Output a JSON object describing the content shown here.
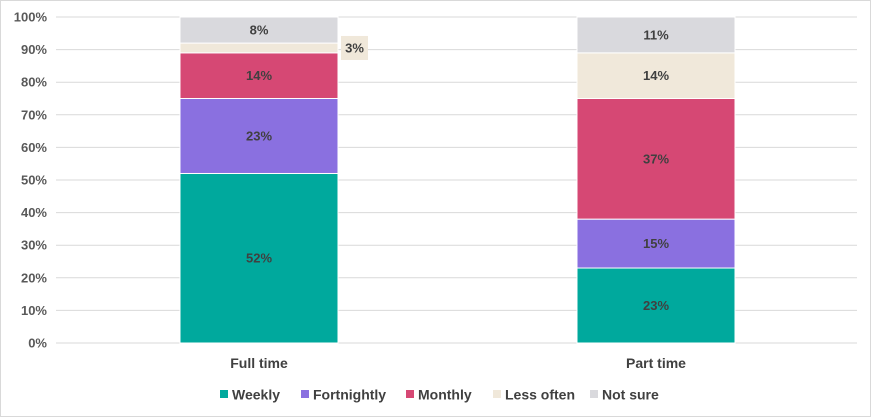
{
  "chart_data": {
    "type": "bar",
    "stacked": true,
    "categories": [
      "Full time",
      "Part time"
    ],
    "series": [
      {
        "name": "Weekly",
        "values": [
          52,
          23
        ],
        "color": "#00a99d"
      },
      {
        "name": "Fortnightly",
        "values": [
          23,
          15
        ],
        "color": "#8a70e0"
      },
      {
        "name": "Monthly",
        "values": [
          14,
          37
        ],
        "color": "#d64874"
      },
      {
        "name": "Less often",
        "values": [
          3,
          14
        ],
        "color": "#f0e8da"
      },
      {
        "name": "Not sure",
        "values": [
          8,
          11
        ],
        "color": "#d9d9dd"
      }
    ],
    "ylim": [
      0,
      100
    ],
    "yticks": [
      "0%",
      "10%",
      "20%",
      "30%",
      "40%",
      "50%",
      "60%",
      "70%",
      "80%",
      "90%",
      "100%"
    ],
    "unit": "%",
    "grid": true,
    "legend": "bottom"
  }
}
